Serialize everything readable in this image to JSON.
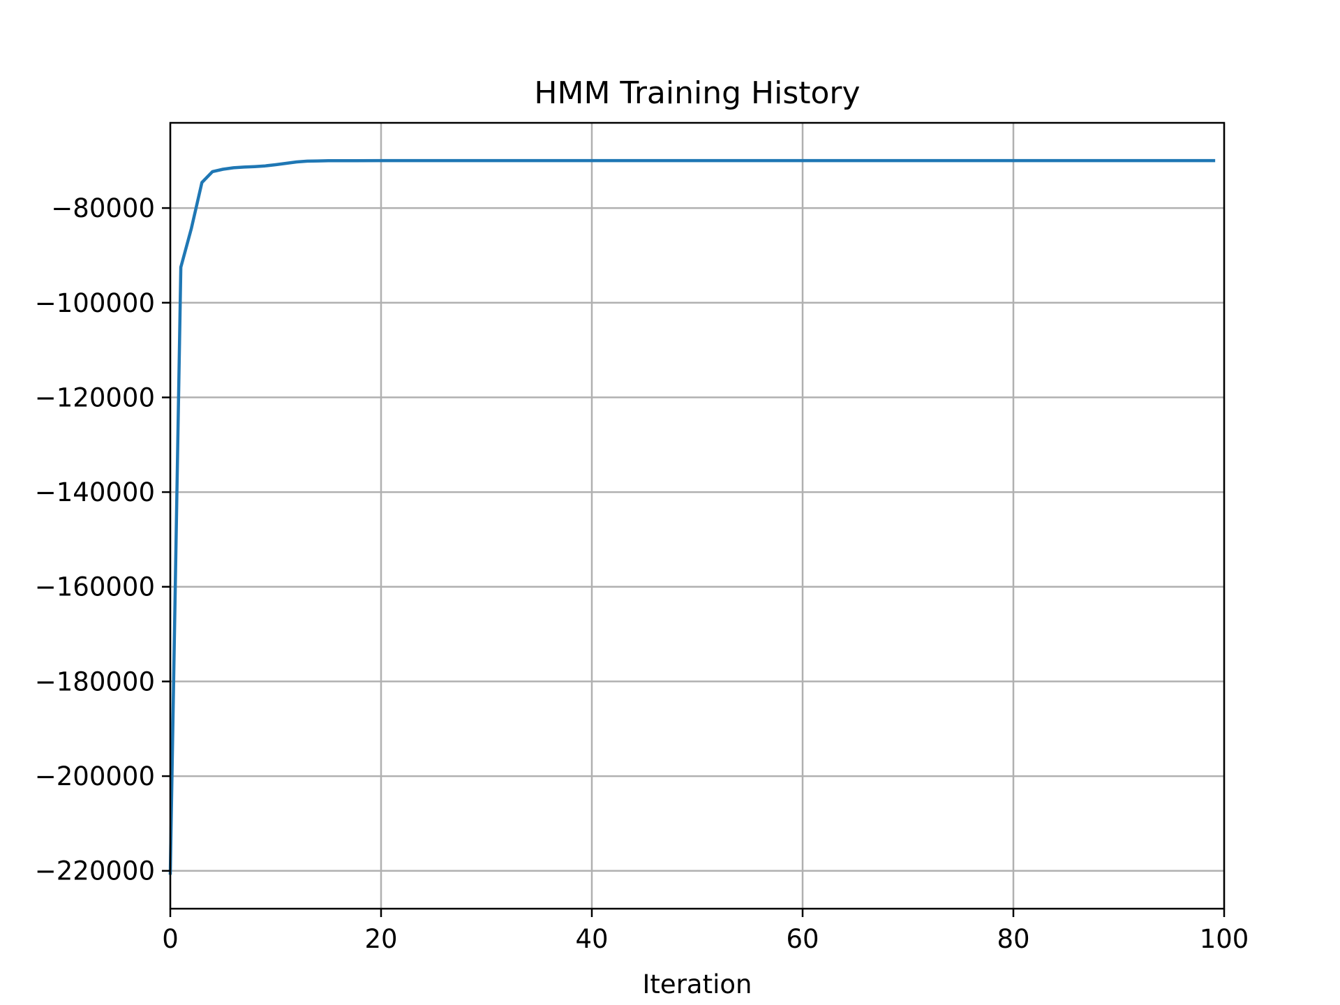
{
  "chart_data": {
    "type": "line",
    "title": "HMM Training History",
    "xlabel": "Iteration",
    "ylabel": "",
    "xlim": [
      0,
      100
    ],
    "ylim": [
      -228000,
      -62000
    ],
    "xticks": [
      0,
      20,
      40,
      60,
      80,
      100
    ],
    "xtick_labels": [
      "0",
      "20",
      "40",
      "60",
      "80",
      "100"
    ],
    "yticks": [
      -80000,
      -100000,
      -120000,
      -140000,
      -160000,
      -180000,
      -200000,
      -220000
    ],
    "ytick_labels": [
      "−80000",
      "−100000",
      "−120000",
      "−140000",
      "−160000",
      "−180000",
      "−200000",
      "−220000"
    ],
    "grid": true,
    "series": [
      {
        "color": "#1f77b4",
        "x": [
          0,
          1,
          2,
          3,
          4,
          5,
          6,
          7,
          8,
          9,
          10,
          11,
          12,
          13,
          14,
          15,
          20,
          30,
          40,
          50,
          60,
          70,
          80,
          90,
          99
        ],
        "y": [
          -220500,
          -92500,
          -84300,
          -74600,
          -72300,
          -71800,
          -71500,
          -71350,
          -71250,
          -71100,
          -70850,
          -70550,
          -70250,
          -70100,
          -70050,
          -70000,
          -69980,
          -69980,
          -69980,
          -69980,
          -69980,
          -69980,
          -69980,
          -69980,
          -69980
        ]
      }
    ]
  }
}
